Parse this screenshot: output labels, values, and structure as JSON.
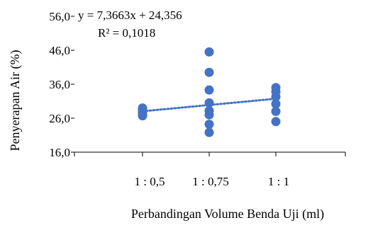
{
  "chart_data": {
    "type": "scatter",
    "title": "",
    "xlabel": "Perbandingan Volume Benda Uji (ml)",
    "ylabel": "Penyerapan Air (%)",
    "ylim": [
      16.0,
      56.0
    ],
    "yticks": [
      "16,0",
      "26,0",
      "36,0",
      "46,0",
      "56,0"
    ],
    "categories": [
      "1 : 0,5",
      "1 : 0,75",
      "1 : 1"
    ],
    "x": [
      0.5,
      0.75,
      1.0
    ],
    "series": [
      {
        "color": "#4472C4",
        "points": [
          {
            "x": 0.5,
            "y": 29.0
          },
          {
            "x": 0.5,
            "y": 28.5
          },
          {
            "x": 0.5,
            "y": 28.0
          },
          {
            "x": 0.5,
            "y": 27.5
          },
          {
            "x": 0.5,
            "y": 27.0
          },
          {
            "x": 0.5,
            "y": 26.7
          },
          {
            "x": 0.75,
            "y": 45.5
          },
          {
            "x": 0.75,
            "y": 39.5
          },
          {
            "x": 0.75,
            "y": 34.3
          },
          {
            "x": 0.75,
            "y": 30.5
          },
          {
            "x": 0.75,
            "y": 28.2
          },
          {
            "x": 0.75,
            "y": 27.0
          },
          {
            "x": 0.75,
            "y": 24.2
          },
          {
            "x": 0.75,
            "y": 21.8
          },
          {
            "x": 1.0,
            "y": 35.0
          },
          {
            "x": 1.0,
            "y": 33.8
          },
          {
            "x": 1.0,
            "y": 32.3
          },
          {
            "x": 1.0,
            "y": 30.2
          },
          {
            "x": 1.0,
            "y": 28.0
          },
          {
            "x": 1.0,
            "y": 25.0
          }
        ]
      }
    ],
    "trendline": {
      "style": "dotted",
      "color": "#4472C4",
      "slope": 7.3663,
      "intercept": 24.356,
      "equation": "y = 7,3663x + 24,356",
      "r_squared": "R² = 0,1018"
    },
    "grid": false,
    "legend": "none"
  }
}
